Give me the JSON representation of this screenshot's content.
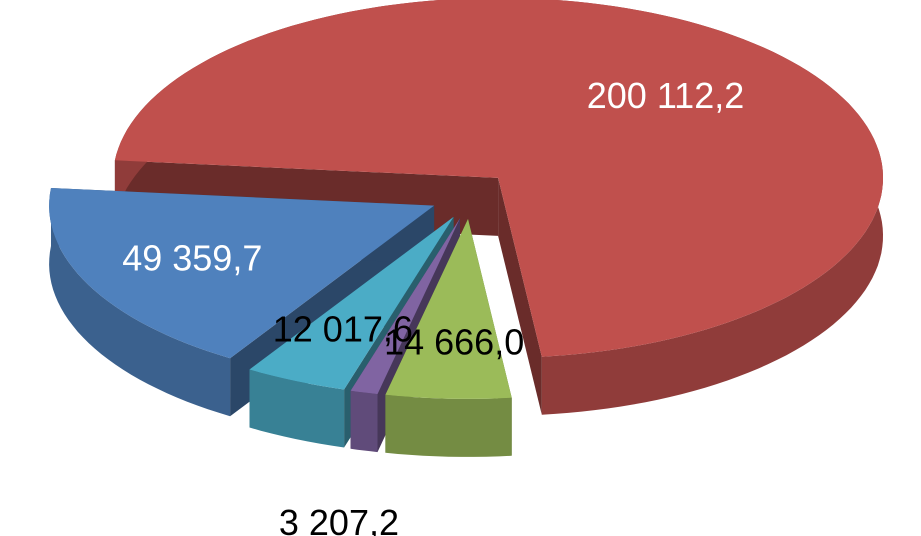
{
  "chart_data": {
    "type": "pie3d",
    "values": [
      49359.7,
      200112.2,
      14666.0,
      3207.2,
      12017.6
    ],
    "value_labels": [
      "49 359,7",
      "200 112,2",
      "14 666,0",
      "3 207,2",
      "12 017,6"
    ],
    "colors": [
      "#4f81bd",
      "#c0504d",
      "#9bbb59",
      "#8064a2",
      "#4bacc6"
    ]
  }
}
